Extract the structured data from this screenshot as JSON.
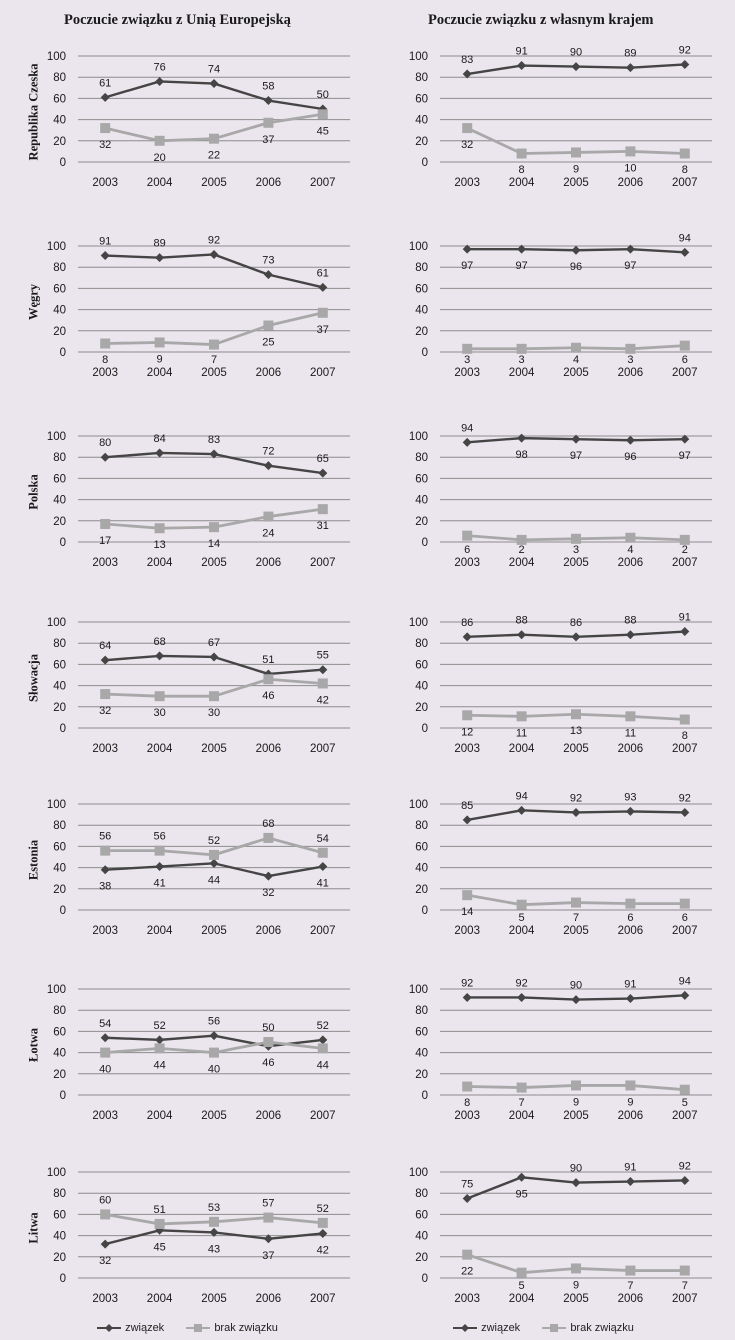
{
  "headers": {
    "left": "Poczucie związku z Unią Europejską",
    "right": "Poczucie związku z własnym krajem"
  },
  "countries": [
    "Republika Czeska",
    "Węgry",
    "Polska",
    "Słowacja",
    "Estonia",
    "Łotwa",
    "Litwa"
  ],
  "legend": {
    "series1": "związek",
    "series2": "brak związku"
  },
  "colors": {
    "series1": "#454545",
    "series2": "#a8a8a8",
    "grid": "#8c8c8c",
    "text": "#1a1a1a"
  },
  "chart_data": [
    {
      "type": "line",
      "panel": "left",
      "country": "Republika Czeska",
      "x": [
        2003,
        2004,
        2005,
        2006,
        2007
      ],
      "ylim": [
        0,
        100
      ],
      "yticks": [
        0,
        20,
        40,
        60,
        80,
        100
      ],
      "series": [
        {
          "name": "związek",
          "values": [
            61,
            76,
            74,
            58,
            50
          ]
        },
        {
          "name": "brak związku",
          "values": [
            32,
            20,
            22,
            37,
            45
          ]
        }
      ]
    },
    {
      "type": "line",
      "panel": "right",
      "country": "Republika Czeska",
      "x": [
        2003,
        2004,
        2005,
        2006,
        2007
      ],
      "ylim": [
        0,
        100
      ],
      "yticks": [
        0,
        20,
        40,
        60,
        80,
        100
      ],
      "series": [
        {
          "name": "związek",
          "values": [
            83,
            91,
            90,
            89,
            92
          ]
        },
        {
          "name": "brak związku",
          "values": [
            32,
            8,
            9,
            10,
            8
          ]
        }
      ]
    },
    {
      "type": "line",
      "panel": "left",
      "country": "Węgry",
      "x": [
        2003,
        2004,
        2005,
        2006,
        2007
      ],
      "ylim": [
        0,
        100
      ],
      "yticks": [
        0,
        20,
        40,
        60,
        80,
        100
      ],
      "series": [
        {
          "name": "związek",
          "values": [
            91,
            89,
            92,
            73,
            61
          ]
        },
        {
          "name": "brak związku",
          "values": [
            8,
            9,
            7,
            25,
            37
          ]
        }
      ]
    },
    {
      "type": "line",
      "panel": "right",
      "country": "Węgry",
      "x": [
        2003,
        2004,
        2005,
        2006,
        2007
      ],
      "ylim": [
        0,
        100
      ],
      "yticks": [
        0,
        20,
        40,
        60,
        80,
        100
      ],
      "series": [
        {
          "name": "związek",
          "values": [
            97,
            97,
            96,
            97,
            94
          ]
        },
        {
          "name": "brak związku",
          "values": [
            3,
            3,
            4,
            3,
            6
          ]
        }
      ]
    },
    {
      "type": "line",
      "panel": "left",
      "country": "Polska",
      "x": [
        2003,
        2004,
        2005,
        2006,
        2007
      ],
      "ylim": [
        0,
        100
      ],
      "yticks": [
        0,
        20,
        40,
        60,
        80,
        100
      ],
      "series": [
        {
          "name": "związek",
          "values": [
            80,
            84,
            83,
            72,
            65
          ]
        },
        {
          "name": "brak związku",
          "values": [
            17,
            13,
            14,
            24,
            31
          ]
        }
      ]
    },
    {
      "type": "line",
      "panel": "right",
      "country": "Polska",
      "x": [
        2003,
        2004,
        2005,
        2006,
        2007
      ],
      "ylim": [
        0,
        100
      ],
      "yticks": [
        0,
        20,
        40,
        60,
        80,
        100
      ],
      "series": [
        {
          "name": "związek",
          "values": [
            94,
            98,
            97,
            96,
            97
          ]
        },
        {
          "name": "brak związku",
          "values": [
            6,
            2,
            3,
            4,
            2
          ]
        }
      ]
    },
    {
      "type": "line",
      "panel": "left",
      "country": "Słowacja",
      "x": [
        2003,
        2004,
        2005,
        2006,
        2007
      ],
      "ylim": [
        0,
        100
      ],
      "yticks": [
        0,
        20,
        40,
        60,
        80,
        100
      ],
      "series": [
        {
          "name": "związek",
          "values": [
            64,
            68,
            67,
            51,
            55
          ]
        },
        {
          "name": "brak związku",
          "values": [
            32,
            30,
            30,
            46,
            42
          ]
        }
      ]
    },
    {
      "type": "line",
      "panel": "right",
      "country": "Słowacja",
      "x": [
        2003,
        2004,
        2005,
        2006,
        2007
      ],
      "ylim": [
        0,
        100
      ],
      "yticks": [
        0,
        20,
        40,
        60,
        80,
        100
      ],
      "series": [
        {
          "name": "związek",
          "values": [
            86,
            88,
            86,
            88,
            91
          ]
        },
        {
          "name": "brak związku",
          "values": [
            12,
            11,
            13,
            11,
            8
          ]
        }
      ]
    },
    {
      "type": "line",
      "panel": "left",
      "country": "Estonia",
      "x": [
        2003,
        2004,
        2005,
        2006,
        2007
      ],
      "ylim": [
        0,
        100
      ],
      "yticks": [
        0,
        20,
        40,
        60,
        80,
        100
      ],
      "series": [
        {
          "name": "związek",
          "values": [
            38,
            41,
            44,
            32,
            41
          ]
        },
        {
          "name": "brak związku",
          "values": [
            56,
            56,
            52,
            68,
            54
          ]
        }
      ]
    },
    {
      "type": "line",
      "panel": "right",
      "country": "Estonia",
      "x": [
        2003,
        2004,
        2005,
        2006,
        2007
      ],
      "ylim": [
        0,
        100
      ],
      "yticks": [
        0,
        20,
        40,
        60,
        80,
        100
      ],
      "series": [
        {
          "name": "związek",
          "values": [
            85,
            94,
            92,
            93,
            92
          ]
        },
        {
          "name": "brak związku",
          "values": [
            14,
            5,
            7,
            6,
            6
          ]
        }
      ]
    },
    {
      "type": "line",
      "panel": "left",
      "country": "Łotwa",
      "x": [
        2003,
        2004,
        2005,
        2006,
        2007
      ],
      "ylim": [
        0,
        100
      ],
      "yticks": [
        0,
        20,
        40,
        60,
        80,
        100
      ],
      "series": [
        {
          "name": "związek",
          "values": [
            54,
            52,
            56,
            46,
            52
          ]
        },
        {
          "name": "brak związku",
          "values": [
            40,
            44,
            40,
            50,
            44
          ]
        }
      ]
    },
    {
      "type": "line",
      "panel": "right",
      "country": "Łotwa",
      "x": [
        2003,
        2004,
        2005,
        2006,
        2007
      ],
      "ylim": [
        0,
        100
      ],
      "yticks": [
        0,
        20,
        40,
        60,
        80,
        100
      ],
      "series": [
        {
          "name": "związek",
          "values": [
            92,
            92,
            90,
            91,
            94
          ]
        },
        {
          "name": "brak związku",
          "values": [
            8,
            7,
            9,
            9,
            5
          ]
        }
      ]
    },
    {
      "type": "line",
      "panel": "left",
      "country": "Litwa",
      "x": [
        2003,
        2004,
        2005,
        2006,
        2007
      ],
      "ylim": [
        0,
        100
      ],
      "yticks": [
        0,
        20,
        40,
        60,
        80,
        100
      ],
      "series": [
        {
          "name": "związek",
          "values": [
            32,
            45,
            43,
            37,
            42
          ]
        },
        {
          "name": "brak związku",
          "values": [
            60,
            51,
            53,
            57,
            52
          ]
        }
      ]
    },
    {
      "type": "line",
      "panel": "right",
      "country": "Litwa",
      "x": [
        2003,
        2004,
        2005,
        2006,
        2007
      ],
      "ylim": [
        0,
        100
      ],
      "yticks": [
        0,
        20,
        40,
        60,
        80,
        100
      ],
      "series": [
        {
          "name": "związek",
          "values": [
            75,
            95,
            90,
            91,
            92
          ]
        },
        {
          "name": "brak związku",
          "values": [
            22,
            5,
            9,
            7,
            7
          ]
        }
      ]
    }
  ]
}
